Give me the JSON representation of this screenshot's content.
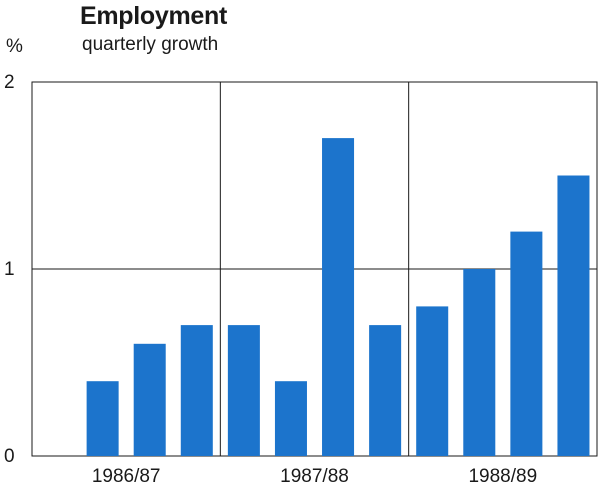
{
  "chart_data": {
    "type": "bar",
    "title": "Employment",
    "subtitle": "quarterly growth",
    "ylabel": "%",
    "ylim": [
      0,
      2
    ],
    "yticks": [
      "0",
      "1",
      "2"
    ],
    "groups": [
      "1986/87",
      "1987/88",
      "1988/89"
    ],
    "values": [
      null,
      0.4,
      0.6,
      0.7,
      0.7,
      0.4,
      1.7,
      0.7,
      0.8,
      1.0,
      1.2,
      1.5
    ],
    "bar_color": "#1c74cc",
    "grid": true
  }
}
